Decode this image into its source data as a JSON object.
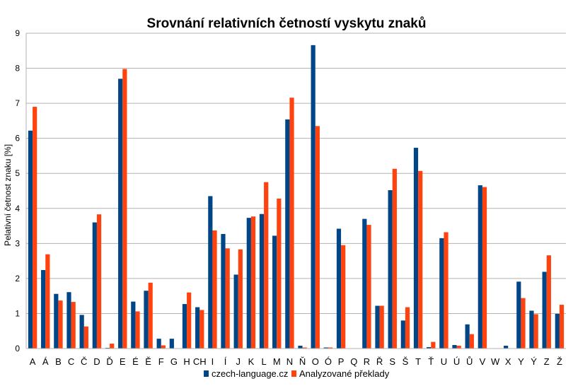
{
  "chart_data": {
    "type": "bar",
    "title": "Srovnání relativních četností vyskytu znaků",
    "xlabel": "",
    "ylabel": "Pelativní četnost znaku [%]",
    "ylim": [
      0,
      9
    ],
    "yticks": [
      0,
      1,
      2,
      3,
      4,
      5,
      6,
      7,
      8,
      9
    ],
    "grid": true,
    "legend_position": "bottom",
    "categories": [
      "A",
      "Á",
      "B",
      "C",
      "Č",
      "D",
      "Ď",
      "E",
      "É",
      "Ě",
      "F",
      "G",
      "H",
      "CH",
      "I",
      "Í",
      "J",
      "K",
      "L",
      "M",
      "N",
      "Ň",
      "O",
      "Ó",
      "P",
      "Q",
      "R",
      "Ř",
      "S",
      "Š",
      "T",
      "Ť",
      "U",
      "Ú",
      "Ů",
      "V",
      "W",
      "X",
      "Y",
      "Ý",
      "Z",
      "Ž"
    ],
    "series": [
      {
        "name": "czech-language.cz",
        "color": "#004586",
        "values": [
          6.22,
          2.24,
          1.56,
          1.61,
          0.96,
          3.6,
          0.02,
          7.7,
          1.34,
          1.65,
          0.28,
          0.28,
          1.27,
          1.18,
          4.35,
          3.27,
          2.11,
          3.73,
          3.84,
          3.22,
          6.54,
          0.08,
          8.66,
          0.03,
          3.42,
          0.0,
          3.7,
          1.22,
          4.52,
          0.8,
          5.73,
          0.04,
          3.15,
          0.1,
          0.69,
          4.66,
          0.01,
          0.08,
          1.91,
          1.08,
          2.19,
          0.99
        ]
      },
      {
        "name": "Analyzované překlady",
        "color": "#ff420e",
        "values": [
          6.9,
          2.69,
          1.37,
          1.33,
          0.63,
          3.83,
          0.14,
          7.98,
          1.06,
          1.88,
          0.09,
          0.01,
          1.6,
          1.1,
          3.37,
          2.86,
          2.83,
          3.77,
          4.75,
          4.28,
          7.16,
          0.03,
          6.35,
          0.03,
          2.95,
          0.0,
          3.53,
          1.22,
          5.13,
          1.18,
          5.07,
          0.19,
          3.32,
          0.08,
          0.41,
          4.61,
          0.0,
          0.0,
          1.44,
          0.98,
          2.66,
          1.25
        ]
      }
    ]
  }
}
